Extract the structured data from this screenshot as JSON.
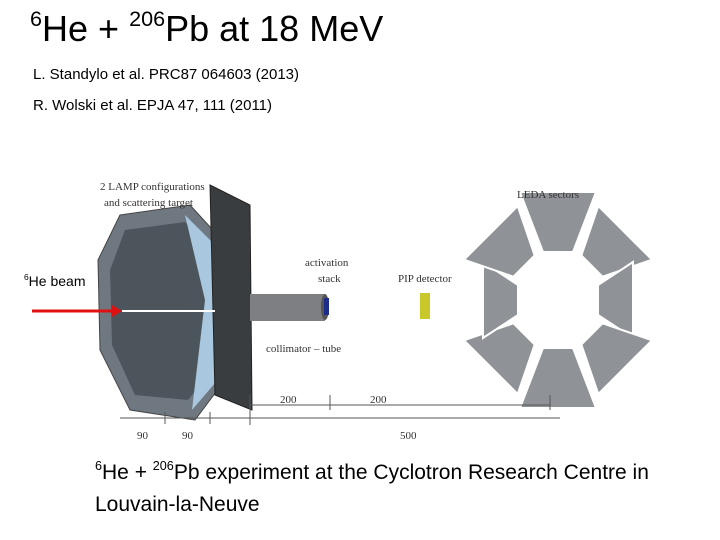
{
  "title": {
    "sup1": "6",
    "part1": "He + ",
    "sup2": "206",
    "part2": "Pb  at 18 MeV"
  },
  "references": [
    "L. Standylo et al. PRC87 064603 (2013)",
    "R. Wolski et al. EPJA 47, 111 (2011)"
  ],
  "diagram": {
    "lamp_label": [
      "2 LAMP configurations",
      "and scattering target"
    ],
    "activation_label": [
      "activation",
      "stack"
    ],
    "pip_label": "PIP detector",
    "leda_label": "LEDA sectors",
    "collimator_label": "collimator – tube",
    "dimensions": [
      "200",
      "200",
      "90",
      "90",
      "500"
    ]
  },
  "beam_label": {
    "sup": "6",
    "text": "He beam"
  },
  "caption": {
    "sup1": "6",
    "part1": "He + ",
    "sup2": "206",
    "part2": "Pb experiment at the Cyclotron Research Centre in Louvain-la-Neuve"
  }
}
